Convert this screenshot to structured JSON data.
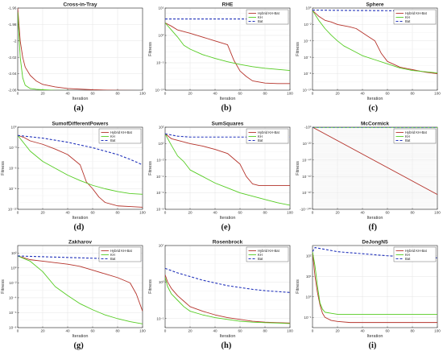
{
  "figure": {
    "series_names": [
      "Hybrid KH-Bat",
      "KH",
      "Bat"
    ],
    "colors": {
      "hybrid": "#b5332b",
      "kh": "#55cc22",
      "bat": "#2233bb"
    }
  },
  "chart_data": [
    {
      "type": "line",
      "caption": "(a)",
      "title": "Cross-in-Tray",
      "xlabel": "Iteration",
      "ylabel": "",
      "xlim": [
        0,
        100
      ],
      "ylim": [
        -2.06,
        -1.96
      ],
      "yscale": "linear",
      "xticks": [
        0,
        20,
        40,
        60,
        80,
        100
      ],
      "xtick_labels": [
        "0",
        "20",
        "40",
        "60",
        "80",
        "100"
      ],
      "yticks": [
        -2.06,
        -2.04,
        -2.02,
        -2.0,
        -1.98,
        -1.96
      ],
      "ytick_labels": [
        "-2.06",
        "-2.04",
        "-2.02",
        "-2",
        "-1.98",
        "-1.96"
      ],
      "legend": false,
      "series": [
        {
          "name": "Hybrid KH-Bat",
          "x": [
            0,
            2,
            4,
            6,
            10,
            15,
            20,
            30,
            40,
            60,
            80,
            100
          ],
          "y": [
            -1.96,
            -2.0,
            -2.02,
            -2.032,
            -2.042,
            -2.049,
            -2.053,
            -2.056,
            -2.058,
            -2.0595,
            -2.0602,
            -2.0605
          ]
        },
        {
          "name": "KH",
          "x": [
            0,
            2,
            4,
            6,
            10,
            15,
            20,
            30,
            50,
            100
          ],
          "y": [
            -1.965,
            -2.02,
            -2.045,
            -2.054,
            -2.058,
            -2.059,
            -2.0595,
            -2.0602,
            -2.0605,
            -2.0605
          ]
        },
        {
          "name": "Bat",
          "x": [
            0,
            100
          ],
          "y": [
            -2.0605,
            -2.0605
          ]
        }
      ]
    },
    {
      "type": "line",
      "caption": "(b)",
      "title": "RHE",
      "xlabel": "Iteration",
      "ylabel": "Fitness",
      "xlim": [
        0,
        100
      ],
      "ylim": [
        -10,
        5
      ],
      "yscale": "log",
      "xticks": [
        0,
        20,
        40,
        60,
        80,
        100
      ],
      "xtick_labels": [
        "0",
        "20",
        "40",
        "60",
        "80",
        "100"
      ],
      "yticks": [
        -10,
        -5,
        0,
        5
      ],
      "ytick_labels": [
        "10⁻¹⁰",
        "10⁻⁵",
        "10⁰",
        "10⁵"
      ],
      "legend": true,
      "series": [
        {
          "name": "Hybrid KH-Bat",
          "x": [
            0,
            5,
            10,
            20,
            30,
            40,
            50,
            55,
            60,
            65,
            70,
            75,
            80,
            90,
            100
          ],
          "y": [
            2.3,
            1.7,
            1.0,
            0.4,
            -0.3,
            -1.0,
            -1.7,
            -4.5,
            -6.5,
            -7.5,
            -8.3,
            -8.5,
            -8.7,
            -8.8,
            -8.8
          ]
        },
        {
          "name": "KH",
          "x": [
            0,
            5,
            10,
            15,
            20,
            30,
            40,
            50,
            60,
            70,
            80,
            90,
            100
          ],
          "y": [
            2.3,
            1.0,
            -0.3,
            -1.8,
            -2.5,
            -3.5,
            -4.2,
            -4.8,
            -5.3,
            -5.7,
            -6.0,
            -6.2,
            -6.4
          ]
        },
        {
          "name": "Bat",
          "x": [
            0,
            100
          ],
          "y": [
            3.0,
            3.0
          ]
        }
      ]
    },
    {
      "type": "line",
      "caption": "(c)",
      "title": "Sphere",
      "xlabel": "Iteration",
      "ylabel": "Fitness",
      "xlim": [
        0,
        100
      ],
      "ylim": [
        -10,
        0
      ],
      "yscale": "log",
      "xticks": [
        0,
        20,
        40,
        60,
        80,
        100
      ],
      "xtick_labels": [
        "0",
        "20",
        "40",
        "60",
        "80",
        "100"
      ],
      "yticks": [
        -10,
        -8,
        -6,
        -4,
        -2,
        0
      ],
      "ytick_labels": [
        "10⁻¹⁰",
        "10⁻⁸",
        "10⁻⁶",
        "10⁻⁴",
        "10⁻²",
        "10⁰"
      ],
      "legend": true,
      "series": [
        {
          "name": "Hybrid KH-Bat",
          "x": [
            0,
            5,
            10,
            15,
            20,
            30,
            35,
            40,
            45,
            50,
            55,
            60,
            70,
            80,
            90,
            100
          ],
          "y": [
            -0.3,
            -1.0,
            -1.5,
            -1.7,
            -2.0,
            -2.3,
            -2.5,
            -3.0,
            -3.5,
            -4.0,
            -5.5,
            -6.5,
            -7.2,
            -7.5,
            -7.8,
            -8.0
          ]
        },
        {
          "name": "KH",
          "x": [
            0,
            5,
            10,
            15,
            20,
            25,
            30,
            40,
            50,
            60,
            70,
            80,
            100
          ],
          "y": [
            -0.3,
            -1.5,
            -2.5,
            -3.3,
            -4.0,
            -4.6,
            -5.0,
            -5.8,
            -6.3,
            -6.8,
            -7.3,
            -7.6,
            -7.9
          ]
        },
        {
          "name": "Bat",
          "x": [
            0,
            20,
            40,
            60,
            80,
            100
          ],
          "y": [
            -0.25,
            -0.28,
            -0.3,
            -0.32,
            -0.35,
            -0.38
          ]
        }
      ]
    },
    {
      "type": "line",
      "caption": "(d)",
      "title": "SumofDifferentPowers",
      "xlabel": "Iteration",
      "ylabel": "Fitness",
      "xlim": [
        0,
        100
      ],
      "ylim": [
        -12,
        0
      ],
      "yscale": "log",
      "xticks": [
        0,
        20,
        40,
        60,
        80,
        100
      ],
      "xtick_labels": [
        "0",
        "20",
        "40",
        "60",
        "80",
        "100"
      ],
      "yticks": [
        -12,
        -9,
        -6,
        -3,
        0
      ],
      "ytick_labels": [
        "10⁻¹²",
        "10⁻⁹",
        "10⁻⁶",
        "10⁻³",
        "10⁰"
      ],
      "legend": true,
      "series": [
        {
          "name": "Hybrid KH-Bat",
          "x": [
            0,
            5,
            10,
            20,
            30,
            40,
            50,
            55,
            60,
            65,
            70,
            80,
            90,
            100
          ],
          "y": [
            -1.2,
            -1.5,
            -2.0,
            -2.5,
            -3.2,
            -4.0,
            -5.5,
            -8.0,
            -9.0,
            -10.2,
            -11.0,
            -11.5,
            -11.6,
            -11.7
          ]
        },
        {
          "name": "KH",
          "x": [
            0,
            10,
            20,
            30,
            40,
            50,
            60,
            70,
            80,
            90,
            100
          ],
          "y": [
            -1.2,
            -3.5,
            -5.0,
            -6.0,
            -7.0,
            -7.8,
            -8.5,
            -9.0,
            -9.4,
            -9.7,
            -9.8
          ]
        },
        {
          "name": "Bat",
          "x": [
            0,
            20,
            40,
            60,
            80,
            90,
            100
          ],
          "y": [
            -1.2,
            -1.6,
            -2.2,
            -3.0,
            -4.0,
            -4.7,
            -5.5
          ]
        }
      ]
    },
    {
      "type": "line",
      "caption": "(e)",
      "title": "SumSquares",
      "xlabel": "Iteration",
      "ylabel": "Fitness",
      "xlim": [
        0,
        100
      ],
      "ylim": [
        -8,
        2
      ],
      "yscale": "log",
      "xticks": [
        0,
        20,
        40,
        60,
        80,
        100
      ],
      "xtick_labels": [
        "0",
        "20",
        "40",
        "60",
        "80",
        "100"
      ],
      "yticks": [
        -8,
        -6,
        -4,
        -2,
        0,
        2
      ],
      "ytick_labels": [
        "10⁻⁸",
        "10⁻⁶",
        "10⁻⁴",
        "10⁻²",
        "10⁰",
        "10²"
      ],
      "legend": true,
      "series": [
        {
          "name": "Hybrid KH-Bat",
          "x": [
            0,
            5,
            10,
            20,
            30,
            40,
            50,
            60,
            65,
            70,
            75,
            80,
            100
          ],
          "y": [
            1.2,
            0.6,
            0.4,
            0.0,
            -0.3,
            -0.7,
            -1.2,
            -2.5,
            -4.0,
            -4.9,
            -5.1,
            -5.1,
            -5.1
          ]
        },
        {
          "name": "KH",
          "x": [
            0,
            5,
            10,
            15,
            20,
            30,
            40,
            50,
            60,
            70,
            80,
            90,
            100
          ],
          "y": [
            1.2,
            -0.2,
            -1.5,
            -2.2,
            -3.2,
            -4.0,
            -4.8,
            -5.4,
            -6.0,
            -6.4,
            -6.8,
            -7.2,
            -7.5
          ]
        },
        {
          "name": "Bat",
          "x": [
            0,
            10,
            20,
            100
          ],
          "y": [
            1.2,
            0.9,
            0.8,
            0.8
          ]
        }
      ]
    },
    {
      "type": "line",
      "caption": "(f)",
      "title": "McCormick",
      "xlabel": "Iteration",
      "ylabel": "Fitness",
      "xlim": [
        0,
        100
      ],
      "ylim": [
        -100,
        0
      ],
      "yscale": "log",
      "xticks": [
        0,
        20,
        40,
        60,
        80,
        100
      ],
      "xtick_labels": [
        "0",
        "20",
        "40",
        "60",
        "80",
        "100"
      ],
      "yticks": [
        -100,
        -80,
        -60,
        -40,
        -20,
        0
      ],
      "ytick_labels": [
        "-10⁻¹⁰⁰",
        "10⁻⁸⁰",
        "10⁻⁶⁰",
        "10⁻⁴⁰",
        "10⁻²⁰",
        "-10⁰"
      ],
      "legend": true,
      "series": [
        {
          "name": "Hybrid KH-Bat",
          "x": [
            0,
            100
          ],
          "y": [
            0,
            -82
          ]
        },
        {
          "name": "KH",
          "x": [
            0,
            100
          ],
          "y": [
            -0.3,
            -0.3
          ]
        },
        {
          "name": "Bat",
          "x": [
            0,
            100
          ],
          "y": [
            0,
            0
          ]
        }
      ]
    },
    {
      "type": "line",
      "caption": "(g)",
      "title": "Zakharov",
      "xlabel": "Iteration",
      "ylabel": "Fitness",
      "xlim": [
        0,
        100
      ],
      "ylim": [
        -8,
        3
      ],
      "yscale": "log",
      "xticks": [
        0,
        20,
        40,
        60,
        80,
        100
      ],
      "xtick_labels": [
        "0",
        "20",
        "40",
        "60",
        "80",
        "100"
      ],
      "yticks": [
        -8,
        -6,
        -4,
        -2,
        0,
        2
      ],
      "ytick_labels": [
        "10⁻⁸",
        "10⁻⁶",
        "10⁻⁴",
        "10⁻²",
        "10⁰",
        "10²"
      ],
      "legend": true,
      "series": [
        {
          "name": "Hybrid KH-Bat",
          "x": [
            0,
            10,
            20,
            30,
            40,
            50,
            60,
            70,
            80,
            90,
            95,
            100
          ],
          "y": [
            1.6,
            1.1,
            0.9,
            0.7,
            0.5,
            0.2,
            -0.3,
            -0.8,
            -1.3,
            -2.0,
            -3.5,
            -5.8
          ]
        },
        {
          "name": "KH",
          "x": [
            0,
            10,
            20,
            30,
            40,
            50,
            60,
            70,
            80,
            90,
            100
          ],
          "y": [
            1.6,
            0.9,
            -0.5,
            -2.5,
            -3.7,
            -4.8,
            -5.6,
            -6.3,
            -6.8,
            -7.2,
            -7.5
          ]
        },
        {
          "name": "Bat",
          "x": [
            0,
            20,
            40,
            60,
            80,
            100
          ],
          "y": [
            1.6,
            1.5,
            1.4,
            1.3,
            1.2,
            1.0
          ]
        }
      ]
    },
    {
      "type": "line",
      "caption": "(h)",
      "title": "Rosenbrock",
      "xlabel": "Iteration",
      "ylabel": "Fitness",
      "xlim": [
        0,
        100
      ],
      "ylim": [
        -2,
        7
      ],
      "yscale": "log",
      "xticks": [
        0,
        20,
        40,
        60,
        80,
        100
      ],
      "xtick_labels": [
        "0",
        "20",
        "40",
        "60",
        "80",
        "100"
      ],
      "yticks": [
        -1,
        3,
        7
      ],
      "ytick_labels": [
        "10⁻¹",
        "10³",
        "10⁷"
      ],
      "legend": true,
      "series": [
        {
          "name": "Hybrid KH-Bat",
          "x": [
            0,
            2,
            5,
            10,
            15,
            20,
            30,
            40,
            50,
            60,
            70,
            80,
            90,
            100
          ],
          "y": [
            3.8,
            3.0,
            2.3,
            1.5,
            0.9,
            0.3,
            -0.2,
            -0.6,
            -0.9,
            -1.1,
            -1.3,
            -1.4,
            -1.45,
            -1.5
          ]
        },
        {
          "name": "KH",
          "x": [
            0,
            2,
            5,
            10,
            15,
            20,
            30,
            40,
            50,
            60,
            70,
            80,
            90,
            100
          ],
          "y": [
            3.5,
            2.5,
            1.7,
            1.0,
            0.3,
            -0.2,
            -0.6,
            -0.9,
            -1.1,
            -1.3,
            -1.4,
            -1.45,
            -1.5,
            -1.55
          ]
        },
        {
          "name": "Bat",
          "x": [
            0,
            10,
            20,
            30,
            40,
            50,
            60,
            70,
            80,
            90,
            100
          ],
          "y": [
            4.5,
            4.0,
            3.6,
            3.2,
            2.9,
            2.6,
            2.4,
            2.2,
            2.05,
            1.95,
            1.85
          ]
        }
      ]
    },
    {
      "type": "line",
      "caption": "(i)",
      "title": "DeJongN5",
      "xlabel": "Iteration",
      "ylabel": "Fitness",
      "xlim": [
        0,
        100
      ],
      "ylim": [
        -1.5,
        2.5
      ],
      "yscale": "log",
      "xticks": [
        0,
        20,
        40,
        60,
        80,
        100
      ],
      "xtick_labels": [
        "0",
        "20",
        "40",
        "60",
        "80",
        "100"
      ],
      "yticks": [
        -1,
        0,
        1,
        2
      ],
      "ytick_labels": [
        "10⁻¹",
        "10⁰",
        "10¹",
        "10²"
      ],
      "legend": true,
      "series": [
        {
          "name": "Hybrid KH-Bat",
          "x": [
            0,
            2,
            4,
            6,
            8,
            10,
            15,
            20,
            30,
            40,
            100
          ],
          "y": [
            2.2,
            1.0,
            0.2,
            -0.4,
            -0.8,
            -1.0,
            -1.15,
            -1.2,
            -1.25,
            -1.25,
            -1.25
          ]
        },
        {
          "name": "KH",
          "x": [
            0,
            2,
            4,
            6,
            8,
            10,
            15,
            20,
            100
          ],
          "y": [
            2.2,
            1.5,
            0.5,
            -0.3,
            -0.6,
            -0.75,
            -0.8,
            -0.85,
            -0.85
          ]
        },
        {
          "name": "Bat",
          "x": [
            0,
            2,
            20,
            40,
            60,
            80,
            100
          ],
          "y": [
            2.2,
            2.4,
            2.2,
            2.1,
            2.0,
            1.95,
            1.9
          ]
        }
      ]
    }
  ]
}
